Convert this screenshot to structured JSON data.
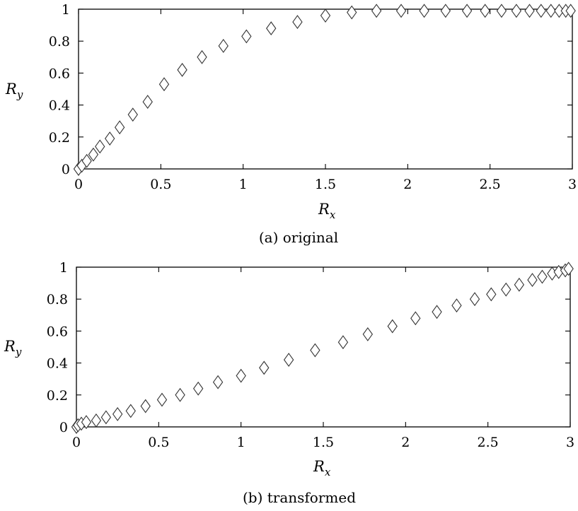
{
  "chart_data": [
    {
      "type": "scatter",
      "caption": "(a) original",
      "xlabel_main": "R",
      "xlabel_sub": "x",
      "ylabel_main": "R",
      "ylabel_sub": "y",
      "xlim": [
        0,
        3
      ],
      "ylim": [
        0,
        1
      ],
      "xticks": [
        0,
        0.5,
        1,
        1.5,
        2,
        2.5,
        3
      ],
      "yticks": [
        0,
        0.2,
        0.4,
        0.6,
        0.8,
        1
      ],
      "xtick_labels": [
        "0",
        "0.5",
        "1",
        "1.5",
        "2",
        "2.5",
        "3"
      ],
      "ytick_labels": [
        "0",
        "0.2",
        "0.4",
        "0.6",
        "0.8",
        "1"
      ],
      "marker": "diamond",
      "grid": false,
      "series": [
        {
          "x": [
            0,
            0.02,
            0.05,
            0.09,
            0.13,
            0.19,
            0.25,
            0.33,
            0.42,
            0.52,
            0.63,
            0.75,
            0.88,
            1.02,
            1.17,
            1.33,
            1.5,
            1.66,
            1.81,
            1.96,
            2.1,
            2.23,
            2.36,
            2.47,
            2.57,
            2.66,
            2.74,
            2.81,
            2.87,
            2.92,
            2.96,
            2.99
          ],
          "y": [
            0.0,
            0.02,
            0.05,
            0.09,
            0.14,
            0.19,
            0.26,
            0.34,
            0.42,
            0.53,
            0.62,
            0.7,
            0.77,
            0.83,
            0.88,
            0.92,
            0.96,
            0.98,
            0.99,
            0.99,
            0.99,
            0.99,
            0.99,
            0.99,
            0.99,
            0.99,
            0.99,
            0.99,
            0.99,
            0.99,
            0.99,
            0.99
          ]
        }
      ]
    },
    {
      "type": "scatter",
      "caption": "(b) transformed",
      "xlabel_main": "R",
      "xlabel_sub": "x",
      "ylabel_main": "R",
      "ylabel_sub": "y",
      "xlim": [
        0,
        3
      ],
      "ylim": [
        0,
        1
      ],
      "xticks": [
        0,
        0.5,
        1,
        1.5,
        2,
        2.5,
        3
      ],
      "yticks": [
        0,
        0.2,
        0.4,
        0.6,
        0.8,
        1
      ],
      "xtick_labels": [
        "0",
        "0.5",
        "1",
        "1.5",
        "2",
        "2.5",
        "3"
      ],
      "ytick_labels": [
        "0",
        "0.2",
        "0.4",
        "0.6",
        "0.8",
        "1"
      ],
      "marker": "diamond",
      "grid": false,
      "series": [
        {
          "x": [
            0,
            0.01,
            0.03,
            0.06,
            0.12,
            0.18,
            0.25,
            0.33,
            0.42,
            0.52,
            0.63,
            0.74,
            0.86,
            1.0,
            1.14,
            1.29,
            1.45,
            1.62,
            1.77,
            1.92,
            2.06,
            2.19,
            2.31,
            2.42,
            2.52,
            2.61,
            2.69,
            2.77,
            2.83,
            2.89,
            2.93,
            2.97,
            2.99
          ],
          "y": [
            0.0,
            0.01,
            0.02,
            0.03,
            0.04,
            0.06,
            0.08,
            0.1,
            0.13,
            0.17,
            0.2,
            0.24,
            0.28,
            0.32,
            0.37,
            0.42,
            0.48,
            0.53,
            0.58,
            0.63,
            0.68,
            0.72,
            0.76,
            0.8,
            0.83,
            0.86,
            0.89,
            0.92,
            0.94,
            0.96,
            0.97,
            0.98,
            0.99
          ]
        }
      ]
    }
  ]
}
